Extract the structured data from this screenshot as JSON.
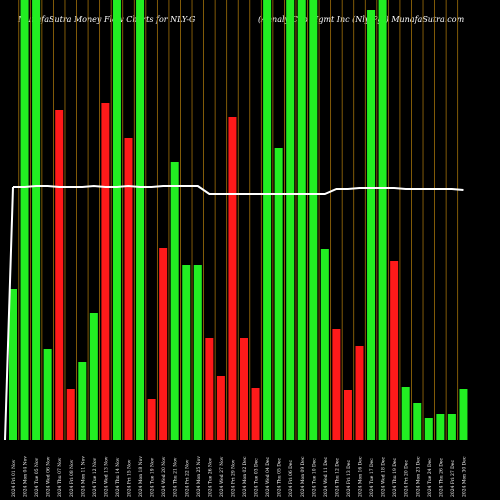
{
  "chart_data": {
    "type": "bar",
    "title": "MunafaSutra  Money Flow  Charts for NLY-G",
    "subtitle": "(Annaly Cap Mgmt Inc (Nly/Pg))  MunafaSutra.com",
    "categories": [
      "2024 Fri 01 Nov",
      "2024 Mon 04 Nov",
      "2024 Tue 05 Nov",
      "2024 Wed 06 Nov",
      "2024 Thu 07 Nov",
      "2024 Fri 08 Nov",
      "2024 Mon 11 Nov",
      "2024 Tue 12 Nov",
      "2024 Wed 13 Nov",
      "2024 Thu 14 Nov",
      "2024 Fri 15 Nov",
      "2024 Mon 18 Nov",
      "2024 Tue 19 Nov",
      "2024 Wed 20 Nov",
      "2024 Thu 21 Nov",
      "2024 Fri 22 Nov",
      "2024 Mon 25 Nov",
      "2024 Tue 26 Nov",
      "2024 Wed 27 Nov",
      "2024 Fri 29 Nov",
      "2024 Mon 02 Dec",
      "2024 Tue 03 Dec",
      "2024 Wed 04 Dec",
      "2024 Thu 05 Dec",
      "2024 Fri 06 Dec",
      "2024 Mon 09 Dec",
      "2024 Tue 10 Dec",
      "2024 Wed 11 Dec",
      "2024 Thu 12 Dec",
      "2024 Fri 13 Dec",
      "2024 Mon 16 Dec",
      "2024 Tue 17 Dec",
      "2024 Wed 18 Dec",
      "2024 Thu 19 Dec",
      "2024 Fri 20 Dec",
      "2024 Mon 23 Dec",
      "2024 Tue 24 Dec",
      "2024 Thu 26 Dec",
      "2024 Fri 27 Dec",
      "2024 Mon 30 Dec"
    ],
    "values": [
      151,
      440,
      440,
      91,
      330,
      51,
      78,
      127,
      337,
      440,
      302,
      440,
      41,
      192,
      278,
      175,
      175,
      102,
      64,
      323,
      102,
      52,
      440,
      292,
      440,
      440,
      440,
      191,
      111,
      50,
      94,
      430,
      440,
      179,
      53,
      37,
      22,
      26,
      26,
      51
    ],
    "colors": [
      "#22ee22",
      "#22ee22",
      "#22ee22",
      "#22ee22",
      "#ff1a1a",
      "#ff1a1a",
      "#22ee22",
      "#22ee22",
      "#ff1a1a",
      "#22ee22",
      "#ff1a1a",
      "#22ee22",
      "#ff1a1a",
      "#ff1a1a",
      "#22ee22",
      "#22ee22",
      "#22ee22",
      "#ff1a1a",
      "#ff1a1a",
      "#ff1a1a",
      "#ff1a1a",
      "#ff1a1a",
      "#22ee22",
      "#22ee22",
      "#22ee22",
      "#22ee22",
      "#22ee22",
      "#22ee22",
      "#ff1a1a",
      "#ff1a1a",
      "#ff1a1a",
      "#22ee22",
      "#22ee22",
      "#ff1a1a",
      "#22ee22",
      "#22ee22",
      "#22ee22",
      "#22ee22",
      "#22ee22",
      "#22ee22"
    ],
    "line_values": [
      253,
      253,
      254,
      254,
      253,
      253,
      253,
      254,
      253,
      253,
      254,
      253,
      253,
      254,
      254,
      254,
      254,
      246,
      246,
      246,
      246,
      246,
      246,
      246,
      246,
      246,
      246,
      246,
      251,
      251,
      252,
      252,
      252,
      252,
      251,
      251,
      251,
      251,
      251,
      250
    ],
    "ylim": [
      0,
      440
    ]
  }
}
